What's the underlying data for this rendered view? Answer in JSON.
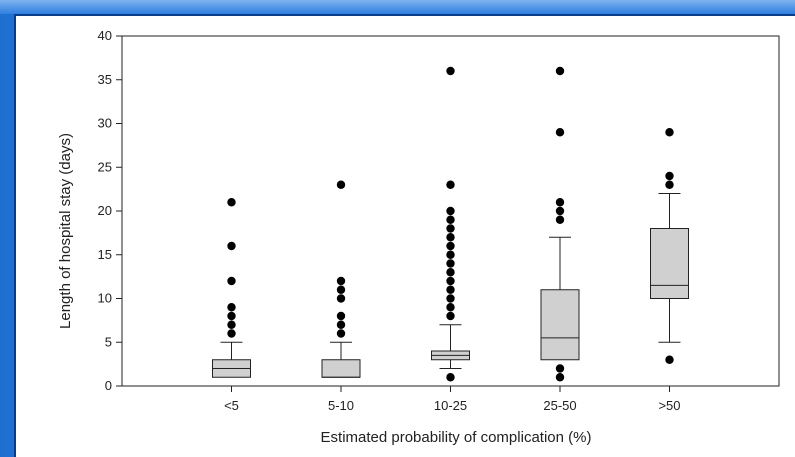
{
  "chart_data": {
    "type": "box",
    "xlabel": "Estimated probability of complication (%)",
    "ylabel": "Length of hospital stay (days)",
    "ylim": [
      0,
      40
    ],
    "yticks": [
      0,
      5,
      10,
      15,
      20,
      25,
      30,
      35,
      40
    ],
    "categories": [
      "<5",
      "5-10",
      "10-25",
      "25-50",
      ">50"
    ],
    "boxes": [
      {
        "category": "<5",
        "whisker_low": 1,
        "q1": 1,
        "median": 2,
        "q3": 3,
        "whisker_high": 5,
        "outliers": [
          6,
          7,
          8,
          9,
          12,
          16,
          21
        ]
      },
      {
        "category": "5-10",
        "whisker_low": 1,
        "q1": 1,
        "median": 1,
        "q3": 3,
        "whisker_high": 5,
        "outliers": [
          6,
          7,
          8,
          10,
          11,
          12,
          23
        ]
      },
      {
        "category": "10-25",
        "whisker_low": 2,
        "q1": 3,
        "median": 3.5,
        "q3": 4,
        "whisker_high": 7,
        "outliers": [
          1,
          8,
          9,
          10,
          11,
          12,
          13,
          14,
          15,
          16,
          17,
          18,
          19,
          20,
          23,
          36
        ]
      },
      {
        "category": "25-50",
        "whisker_low": 3,
        "q1": 3,
        "median": 5.5,
        "q3": 11,
        "whisker_high": 17,
        "outliers": [
          1,
          2,
          19,
          20,
          21,
          29,
          36
        ]
      },
      {
        "category": ">50",
        "whisker_low": 5,
        "q1": 10,
        "median": 11.5,
        "q3": 18,
        "whisker_high": 22,
        "outliers": [
          3,
          23,
          24,
          29
        ]
      }
    ],
    "colors": {
      "box_fill": "#d0d0d0",
      "stroke": "#222222",
      "outlier": "#000000"
    }
  }
}
